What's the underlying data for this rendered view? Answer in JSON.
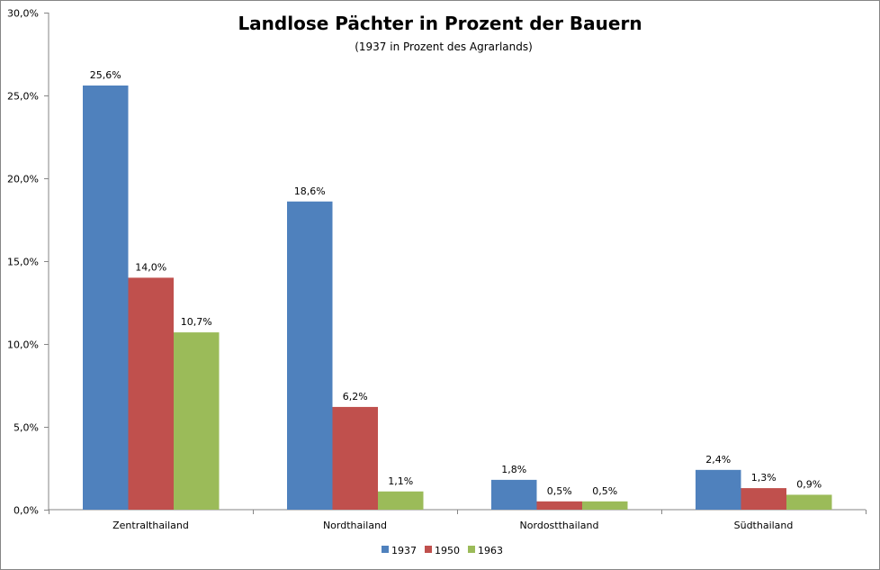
{
  "chart_data": {
    "type": "bar",
    "title": "Landlose Pächter in Prozent der Bauern",
    "subtitle": "(1937 in Prozent des Agrarlands)",
    "xlabel": "",
    "ylabel": "",
    "ylim": [
      0,
      30
    ],
    "y_ticks": [
      "0,0%",
      "5,0%",
      "10,0%",
      "15,0%",
      "20,0%",
      "25,0%",
      "30,0%"
    ],
    "categories": [
      "Zentralthailand",
      "Nordthailand",
      "Nordostthailand",
      "Südthailand"
    ],
    "series": [
      {
        "name": "1937",
        "color": "#4F81BD",
        "values": [
          25.6,
          18.6,
          1.8,
          2.4
        ],
        "labels": [
          "25,6%",
          "18,6%",
          "1,8%",
          "2,4%"
        ]
      },
      {
        "name": "1950",
        "color": "#C0504D",
        "values": [
          14.0,
          6.2,
          0.5,
          1.3
        ],
        "labels": [
          "14,0%",
          "6,2%",
          "0,5%",
          "1,3%"
        ]
      },
      {
        "name": "1963",
        "color": "#9BBB59",
        "values": [
          10.7,
          1.1,
          0.5,
          0.9
        ],
        "labels": [
          "10,7%",
          "1,1%",
          "0,5%",
          "0,9%"
        ]
      }
    ],
    "grid": false,
    "legend_position": "bottom"
  }
}
